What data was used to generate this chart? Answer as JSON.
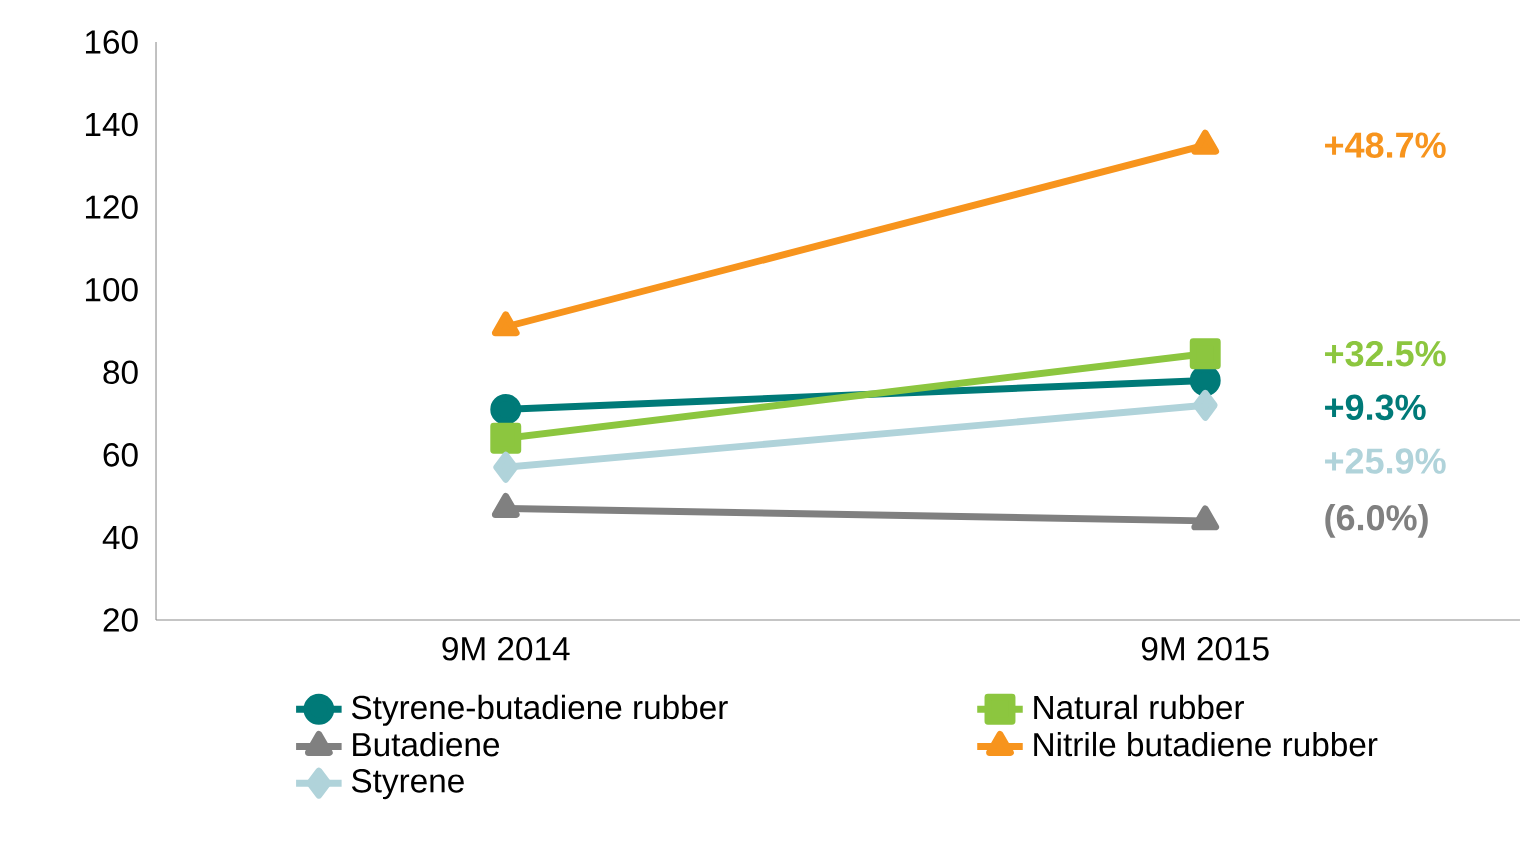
{
  "chart_data": {
    "type": "line",
    "categories": [
      "9M 2014",
      "9M 2015"
    ],
    "series": [
      {
        "name": "Styrene-butadiene rubber",
        "color": "#007a78",
        "marker": "circle",
        "values": [
          71,
          78
        ]
      },
      {
        "name": "Natural rubber",
        "color": "#8cc63f",
        "marker": "square",
        "values": [
          64,
          84.5
        ]
      },
      {
        "name": "Butadiene",
        "color": "#808080",
        "marker": "triangle",
        "values": [
          47,
          44
        ]
      },
      {
        "name": "Nitrile butadiene rubber",
        "color": "#f7941d",
        "marker": "triangle",
        "values": [
          91,
          135
        ]
      },
      {
        "name": "Styrene",
        "color": "#b0d3da",
        "marker": "diamond",
        "values": [
          57,
          72
        ]
      }
    ],
    "annotations": [
      "+9.3%",
      "+32.5%",
      "(6.0%)",
      "+48.7%",
      "+25.9%"
    ],
    "ylim": [
      20,
      160
    ],
    "yticks": [
      20,
      40,
      60,
      80,
      100,
      120,
      140,
      160
    ],
    "grid": false,
    "legend": "bottom",
    "line_style": "solid"
  }
}
